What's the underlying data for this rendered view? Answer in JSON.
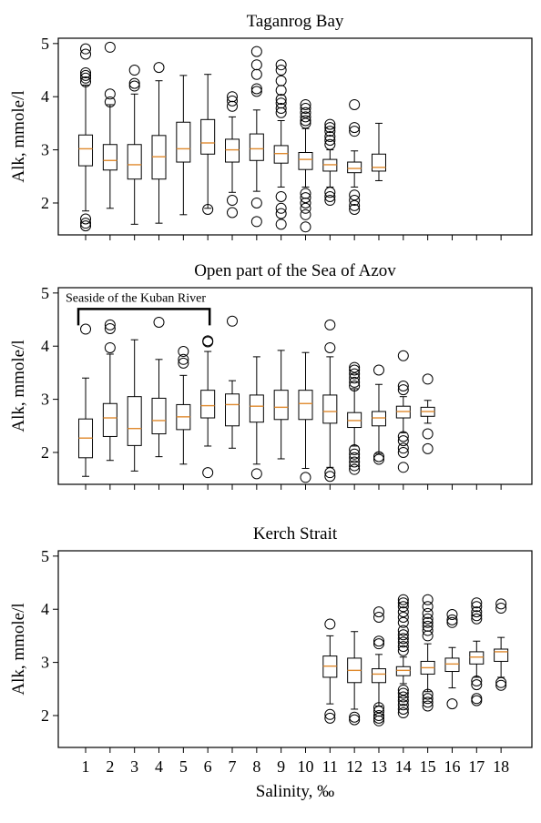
{
  "chart_data": [
    {
      "type": "box",
      "title": "Taganrog Bay",
      "ylabel": "Alk, mmole/l",
      "ylim": [
        1.4,
        5.1
      ],
      "yticks": [
        2,
        3,
        4,
        5
      ],
      "boxes": [
        {
          "x": 1,
          "lw": 1.85,
          "q1": 2.7,
          "med": 3.02,
          "q3": 3.28,
          "uw": 4.22,
          "outliers": [
            4.9,
            4.8,
            4.45,
            4.4,
            4.35,
            4.28,
            1.7,
            1.62,
            1.57
          ]
        },
        {
          "x": 2,
          "lw": 1.9,
          "q1": 2.62,
          "med": 2.8,
          "q3": 3.1,
          "uw": 3.85,
          "outliers": [
            4.93,
            4.05,
            3.9
          ]
        },
        {
          "x": 3,
          "lw": 1.6,
          "q1": 2.45,
          "med": 2.72,
          "q3": 3.1,
          "uw": 4.05,
          "outliers": [
            4.5,
            4.25,
            4.2
          ]
        },
        {
          "x": 4,
          "lw": 1.62,
          "q1": 2.45,
          "med": 2.87,
          "q3": 3.27,
          "uw": 4.3,
          "outliers": [
            4.55
          ]
        },
        {
          "x": 5,
          "lw": 1.78,
          "q1": 2.77,
          "med": 3.02,
          "q3": 3.52,
          "uw": 4.4,
          "outliers": []
        },
        {
          "x": 6,
          "lw": 1.9,
          "q1": 2.92,
          "med": 3.13,
          "q3": 3.57,
          "uw": 4.42,
          "outliers": [
            1.88
          ]
        },
        {
          "x": 7,
          "lw": 2.2,
          "q1": 2.77,
          "med": 3.0,
          "q3": 3.2,
          "uw": 3.62,
          "outliers": [
            4.0,
            3.92,
            3.82,
            2.05,
            1.82
          ]
        },
        {
          "x": 8,
          "lw": 2.22,
          "q1": 2.8,
          "med": 3.02,
          "q3": 3.3,
          "uw": 3.75,
          "outliers": [
            4.85,
            4.6,
            4.42,
            4.15,
            4.1,
            2.0,
            1.65
          ]
        },
        {
          "x": 9,
          "lw": 2.3,
          "q1": 2.75,
          "med": 2.93,
          "q3": 3.08,
          "uw": 3.55,
          "outliers": [
            4.6,
            4.5,
            4.3,
            4.12,
            3.95,
            3.88,
            3.78,
            3.7,
            2.12,
            1.9,
            1.8,
            1.6
          ]
        },
        {
          "x": 10,
          "lw": 2.3,
          "q1": 2.63,
          "med": 2.82,
          "q3": 2.95,
          "uw": 3.4,
          "outliers": [
            3.85,
            3.78,
            3.7,
            3.62,
            3.55,
            3.5,
            2.18,
            2.1,
            2.0,
            1.9,
            1.78,
            1.55
          ]
        },
        {
          "x": 11,
          "lw": 2.3,
          "q1": 2.6,
          "med": 2.72,
          "q3": 2.82,
          "uw": 3.0,
          "outliers": [
            3.48,
            3.42,
            3.35,
            3.25,
            3.18,
            3.1,
            2.2,
            2.12,
            2.05
          ]
        },
        {
          "x": 12,
          "lw": 2.3,
          "q1": 2.57,
          "med": 2.65,
          "q3": 2.77,
          "uw": 2.98,
          "outliers": [
            3.85,
            3.42,
            3.35,
            2.15,
            2.05,
            1.95,
            1.88
          ]
        },
        {
          "x": 13,
          "lw": 2.42,
          "q1": 2.6,
          "med": 2.67,
          "q3": 2.92,
          "uw": 3.5,
          "outliers": []
        }
      ]
    },
    {
      "type": "box",
      "title": "Open part of the Sea of Azov",
      "ylabel": "Alk, mmole/l",
      "ylim": [
        1.4,
        5.1
      ],
      "yticks": [
        2,
        3,
        4,
        5
      ],
      "annotation": {
        "text": "Seaside of the Kuban River",
        "x_start": 1,
        "x_end": 6,
        "y": 4.7
      },
      "boxes": [
        {
          "x": 1,
          "lw": 1.55,
          "q1": 1.9,
          "med": 2.27,
          "q3": 2.63,
          "uw": 3.4,
          "outliers": [
            4.32
          ]
        },
        {
          "x": 2,
          "lw": 1.85,
          "q1": 2.3,
          "med": 2.65,
          "q3": 2.92,
          "uw": 3.85,
          "outliers": [
            4.4,
            4.33,
            3.97
          ]
        },
        {
          "x": 3,
          "lw": 1.65,
          "q1": 2.13,
          "med": 2.45,
          "q3": 3.05,
          "uw": 4.12,
          "outliers": []
        },
        {
          "x": 4,
          "lw": 1.92,
          "q1": 2.35,
          "med": 2.6,
          "q3": 3.02,
          "uw": 3.75,
          "outliers": [
            4.45
          ]
        },
        {
          "x": 5,
          "lw": 1.78,
          "q1": 2.43,
          "med": 2.67,
          "q3": 2.9,
          "uw": 3.45,
          "outliers": [
            3.9,
            3.75,
            3.68
          ]
        },
        {
          "x": 6,
          "lw": 2.12,
          "q1": 2.65,
          "med": 2.88,
          "q3": 3.17,
          "uw": 3.9,
          "outliers": [
            4.1,
            4.08,
            1.62
          ]
        },
        {
          "x": 7,
          "lw": 2.08,
          "q1": 2.5,
          "med": 2.9,
          "q3": 3.1,
          "uw": 3.35,
          "outliers": [
            4.47
          ]
        },
        {
          "x": 8,
          "lw": 1.78,
          "q1": 2.57,
          "med": 2.87,
          "q3": 3.08,
          "uw": 3.8,
          "outliers": [
            1.6
          ]
        },
        {
          "x": 9,
          "lw": 1.88,
          "q1": 2.62,
          "med": 2.85,
          "q3": 3.17,
          "uw": 3.92,
          "outliers": []
        },
        {
          "x": 10,
          "lw": 1.7,
          "q1": 2.62,
          "med": 2.92,
          "q3": 3.17,
          "uw": 3.88,
          "outliers": [
            1.53
          ]
        },
        {
          "x": 11,
          "lw": 1.72,
          "q1": 2.55,
          "med": 2.77,
          "q3": 3.08,
          "uw": 3.8,
          "outliers": [
            4.4,
            3.97,
            1.62,
            1.55
          ]
        },
        {
          "x": 12,
          "lw": 2.12,
          "q1": 2.47,
          "med": 2.6,
          "q3": 2.75,
          "uw": 3.2,
          "outliers": [
            3.6,
            3.55,
            3.48,
            3.4,
            3.32,
            3.25,
            2.05,
            1.97,
            1.9,
            1.82,
            1.75,
            1.68
          ]
        },
        {
          "x": 13,
          "lw": 1.98,
          "q1": 2.5,
          "med": 2.65,
          "q3": 2.77,
          "uw": 3.28,
          "outliers": [
            3.55,
            1.92,
            1.87
          ]
        },
        {
          "x": 14,
          "lw": 2.37,
          "q1": 2.65,
          "med": 2.77,
          "q3": 2.87,
          "uw": 3.05,
          "outliers": [
            3.82,
            3.25,
            3.18,
            2.3,
            2.22,
            2.08,
            2.0,
            1.72
          ]
        },
        {
          "x": 15,
          "lw": 2.55,
          "q1": 2.68,
          "med": 2.77,
          "q3": 2.85,
          "uw": 2.98,
          "outliers": [
            3.38,
            2.35,
            2.07
          ]
        }
      ]
    },
    {
      "type": "box",
      "title": "Kerch Strait",
      "ylabel": "Alk, mmole/l",
      "xlabel": "Salinity, ‰",
      "ylim": [
        1.4,
        5.1
      ],
      "yticks": [
        2,
        3,
        4,
        5
      ],
      "xticks": [
        1,
        2,
        3,
        4,
        5,
        6,
        7,
        8,
        9,
        10,
        11,
        12,
        13,
        14,
        15,
        16,
        17,
        18
      ],
      "boxes": [
        {
          "x": 11,
          "lw": 2.22,
          "q1": 2.72,
          "med": 2.93,
          "q3": 3.12,
          "uw": 3.5,
          "outliers": [
            3.72,
            2.02,
            1.95
          ]
        },
        {
          "x": 12,
          "lw": 2.12,
          "q1": 2.62,
          "med": 2.85,
          "q3": 3.08,
          "uw": 3.58,
          "outliers": [
            1.97,
            1.92
          ]
        },
        {
          "x": 13,
          "lw": 2.18,
          "q1": 2.62,
          "med": 2.78,
          "q3": 2.88,
          "uw": 3.15,
          "outliers": [
            3.95,
            3.85,
            3.4,
            3.35,
            2.15,
            2.08,
            2.0,
            1.95,
            1.9
          ]
        },
        {
          "x": 14,
          "lw": 2.6,
          "q1": 2.75,
          "med": 2.85,
          "q3": 2.92,
          "uw": 3.1,
          "outliers": [
            4.18,
            4.12,
            4.05,
            3.95,
            3.85,
            3.75,
            3.6,
            3.52,
            3.45,
            3.38,
            3.3,
            3.22,
            2.48,
            2.42,
            2.35,
            2.28,
            2.2,
            2.12,
            2.05
          ]
        },
        {
          "x": 15,
          "lw": 2.45,
          "q1": 2.78,
          "med": 2.9,
          "q3": 3.02,
          "uw": 3.35,
          "outliers": [
            4.18,
            4.05,
            3.92,
            3.82,
            3.75,
            3.68,
            3.6,
            3.5,
            2.4,
            2.32,
            2.25,
            2.18
          ]
        },
        {
          "x": 16,
          "lw": 2.52,
          "q1": 2.83,
          "med": 2.97,
          "q3": 3.08,
          "uw": 3.28,
          "outliers": [
            3.9,
            3.8,
            3.75,
            2.22
          ]
        },
        {
          "x": 17,
          "lw": 2.72,
          "q1": 2.97,
          "med": 3.1,
          "q3": 3.2,
          "uw": 3.4,
          "outliers": [
            4.12,
            4.05,
            3.95,
            3.88,
            3.82,
            2.65,
            2.58,
            2.32,
            2.28
          ]
        },
        {
          "x": 18,
          "lw": 2.72,
          "q1": 3.02,
          "med": 3.2,
          "q3": 3.25,
          "uw": 3.47,
          "outliers": [
            4.1,
            4.02,
            2.62,
            2.57
          ]
        }
      ]
    }
  ],
  "colors": {
    "median": "#e08a2e",
    "box": "#000000"
  }
}
